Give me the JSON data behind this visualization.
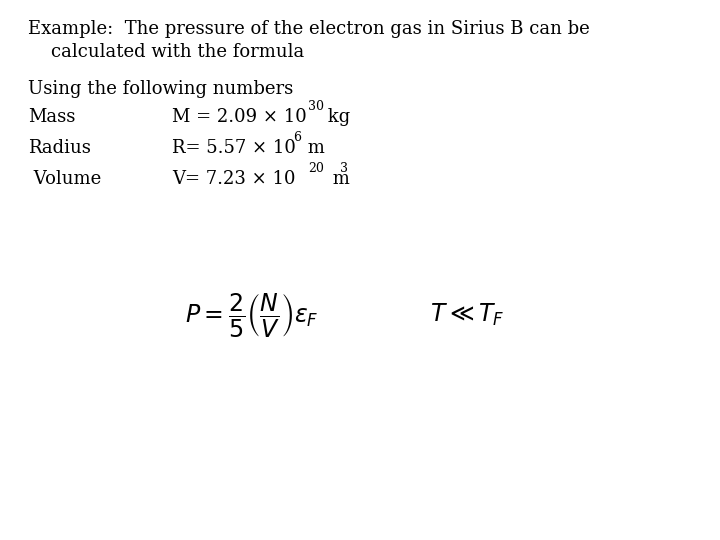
{
  "background_color": "#ffffff",
  "title_line1": "Example:  The pressure of the electron gas in Sirius B can be",
  "title_line2": "    calculated with the formula",
  "using_text": "Using the following numbers",
  "row1_label": "Mass",
  "row1_value": "M = 2.09 × 10",
  "row1_exp": "30",
  "row1_unit": " kg",
  "row2_label": "Radius",
  "row2_value": "R= 5.57 × 10",
  "row2_exp": "6",
  "row2_unit": " m",
  "row3_label": " Volume",
  "row3_value": "V= 7.23 × 10",
  "row3_exp": "20",
  "row3_unit": " m",
  "row3_unit_exp": "3",
  "formula": "P = \\dfrac{2}{5}\\left(\\dfrac{N}{V}\\right)\\varepsilon_F",
  "condition": "T \\ll T_F",
  "font_size_title": 13,
  "font_size_body": 13,
  "font_size_sup": 9,
  "font_size_formula": 17
}
